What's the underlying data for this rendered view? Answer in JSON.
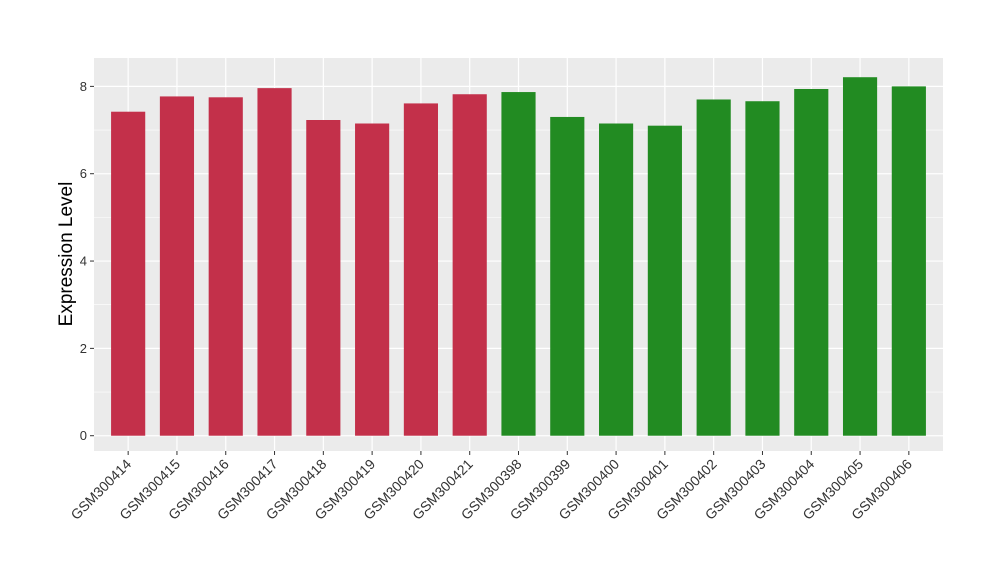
{
  "chart_data": {
    "type": "bar",
    "title": "",
    "xlabel": "",
    "ylabel": "Expression Level",
    "ylim": [
      -0.35,
      8.65
    ],
    "yticks": [
      0,
      2,
      4,
      6,
      8
    ],
    "grid": true,
    "categories": [
      "GSM300414",
      "GSM300415",
      "GSM300416",
      "GSM300417",
      "GSM300418",
      "GSM300419",
      "GSM300420",
      "GSM300421",
      "GSM300398",
      "GSM300399",
      "GSM300400",
      "GSM300401",
      "GSM300402",
      "GSM300403",
      "GSM300404",
      "GSM300405",
      "GSM300406"
    ],
    "values": [
      7.42,
      7.77,
      7.75,
      7.96,
      7.23,
      7.15,
      7.61,
      7.82,
      7.87,
      7.3,
      7.15,
      7.1,
      7.7,
      7.66,
      7.94,
      8.21,
      8.0
    ],
    "bar_colors": [
      "#c3304a",
      "#c3304a",
      "#c3304a",
      "#c3304a",
      "#c3304a",
      "#c3304a",
      "#c3304a",
      "#c3304a",
      "#228b22",
      "#228b22",
      "#228b22",
      "#228b22",
      "#228b22",
      "#228b22",
      "#228b22",
      "#228b22",
      "#228b22"
    ],
    "colors": {
      "panel_background": "#ebebeb",
      "gridline": "#ffffff",
      "tick_text": "#333333"
    }
  }
}
